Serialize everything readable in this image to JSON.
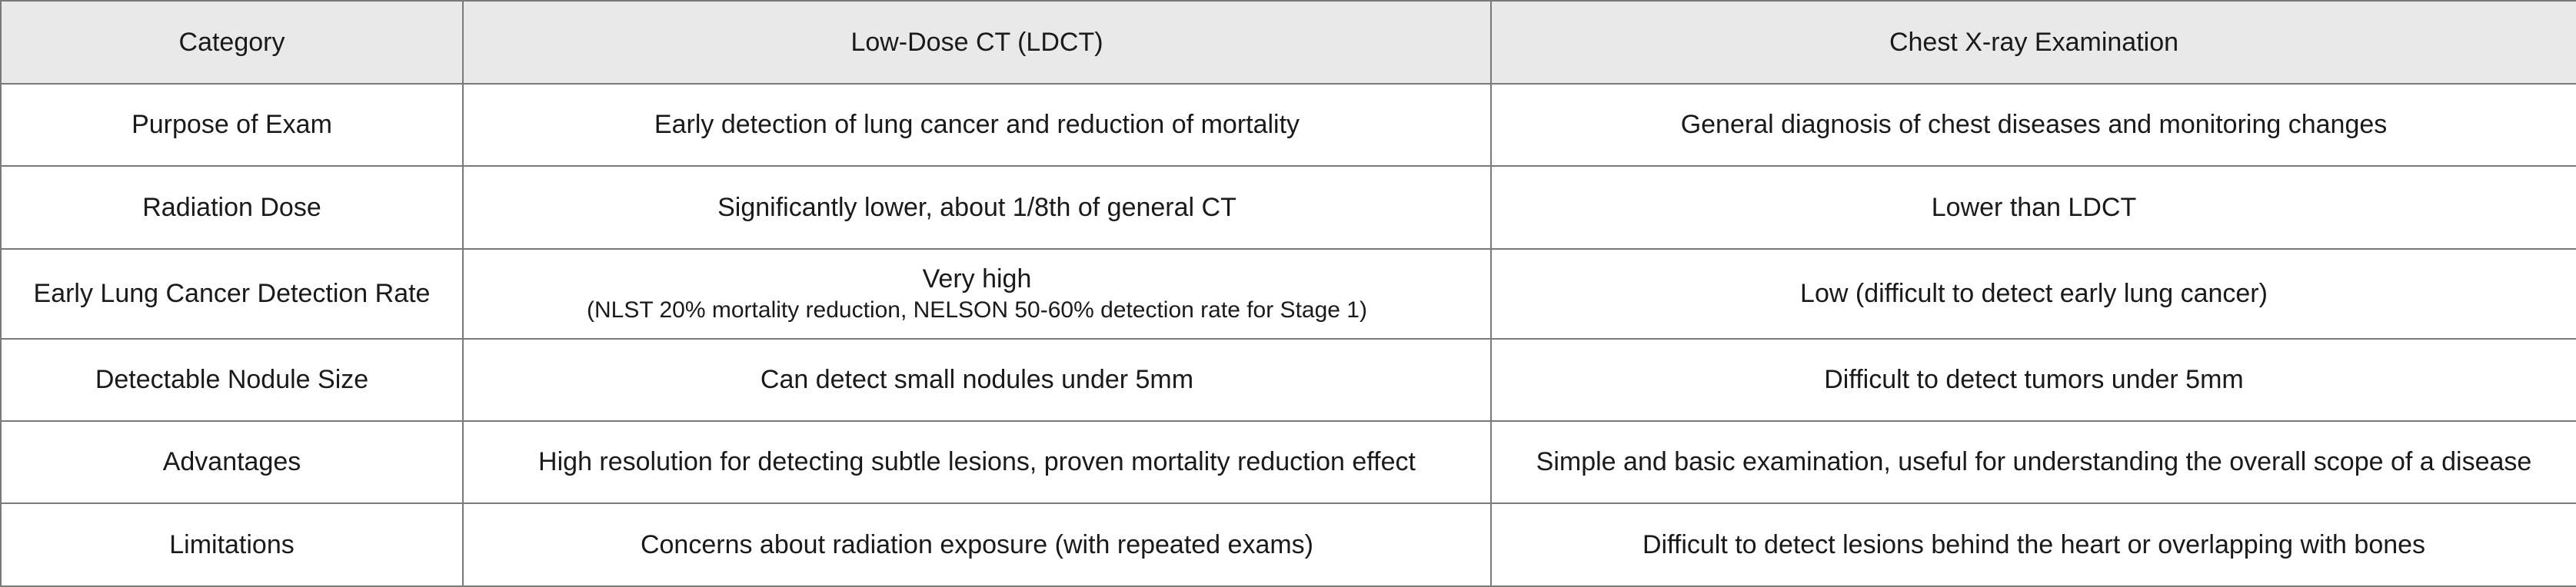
{
  "table": {
    "headers": [
      "Category",
      "Low-Dose CT (LDCT)",
      "Chest X-ray Examination"
    ],
    "rows": [
      {
        "category": "Purpose of Exam",
        "ldct": "Early detection of lung cancer and reduction of mortality",
        "ldct_note": "",
        "xray": "General diagnosis of chest diseases and monitoring changes"
      },
      {
        "category": "Radiation Dose",
        "ldct": "Significantly lower, about 1/8th of general CT",
        "ldct_note": "",
        "xray": "Lower than LDCT"
      },
      {
        "category": "Early Lung Cancer Detection Rate",
        "ldct": "Very high",
        "ldct_note": "(NLST 20% mortality reduction, NELSON 50-60% detection rate for Stage 1)",
        "xray": "Low (difficult to detect early lung cancer)"
      },
      {
        "category": "Detectable Nodule Size",
        "ldct": "Can detect small nodules under 5mm",
        "ldct_note": "",
        "xray": "Difficult to detect tumors under 5mm"
      },
      {
        "category": "Advantages",
        "ldct": "High resolution for detecting subtle lesions, proven mortality reduction effect",
        "ldct_note": "",
        "xray": "Simple and basic examination, useful for understanding the overall scope of a disease"
      },
      {
        "category": "Limitations",
        "ldct": "Concerns about radiation exposure (with repeated exams)",
        "ldct_note": "",
        "xray": "Difficult to detect lesions behind the heart or overlapping with bones"
      }
    ]
  }
}
